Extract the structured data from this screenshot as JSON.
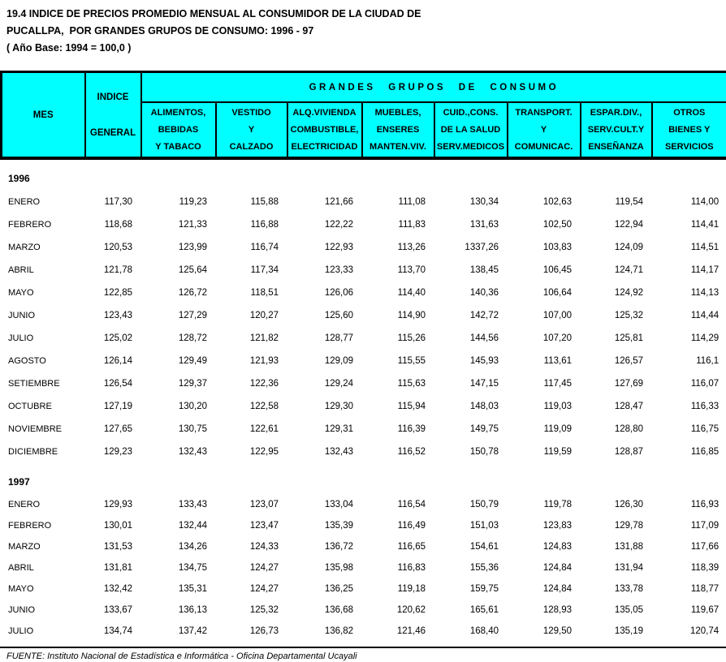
{
  "title": {
    "line1": "19.4 INDICE DE PRECIOS PROMEDIO MENSUAL AL CONSUMIDOR DE LA CIUDAD DE",
    "line2": "PUCALLPA,  POR GRANDES GRUPOS DE CONSUMO: 1996 - 97",
    "line3": "( Año Base: 1994 = 100,0 )"
  },
  "colors": {
    "header_bg": "#00FFFF",
    "border": "#000000",
    "text": "#000000",
    "page_bg": "#FFFFFF"
  },
  "table": {
    "header": {
      "mes": "MES",
      "indice": [
        "INDICE",
        "GENERAL"
      ],
      "group_title": "GRANDES GRUPOS DE CONSUMO",
      "groups": [
        [
          "ALIMENTOS,",
          "BEBIDAS",
          "Y TABACO"
        ],
        [
          "VESTIDO",
          "Y",
          "CALZADO"
        ],
        [
          "ALQ.VIVIENDA",
          "COMBUSTIBLE,",
          "ELECTRICIDAD"
        ],
        [
          "MUEBLES,",
          "ENSERES",
          "MANTEN.VIV."
        ],
        [
          "CUID.,CONS.",
          "DE LA SALUD",
          "SERV.MEDICOS"
        ],
        [
          "TRANSPORT.",
          "Y",
          "COMUNICAC."
        ],
        [
          "ESPAR.DIV.,",
          "SERV.CULT.Y",
          "ENSEÑANZA"
        ],
        [
          "OTROS",
          "BIENES Y",
          "SERVICIOS"
        ]
      ]
    },
    "sections": [
      {
        "year": "1996",
        "rows": [
          {
            "month": "ENERO",
            "values": [
              "117,30",
              "119,23",
              "115,88",
              "121,66",
              "111,08",
              "130,34",
              "102,63",
              "119,54",
              "114,00"
            ]
          },
          {
            "month": "FEBRERO",
            "values": [
              "118,68",
              "121,33",
              "116,88",
              "122,22",
              "111,83",
              "131,63",
              "102,50",
              "122,94",
              "114,41"
            ]
          },
          {
            "month": "MARZO",
            "values": [
              "120,53",
              "123,99",
              "116,74",
              "122,93",
              "113,26",
              "1337,26",
              "103,83",
              "124,09",
              "114,51"
            ]
          },
          {
            "month": "ABRIL",
            "values": [
              "121,78",
              "125,64",
              "117,34",
              "123,33",
              "113,70",
              "138,45",
              "106,45",
              "124,71",
              "114,17"
            ]
          },
          {
            "month": "MAYO",
            "values": [
              "122,85",
              "126,72",
              "118,51",
              "126,06",
              "114,40",
              "140,36",
              "106,64",
              "124,92",
              "114,13"
            ]
          },
          {
            "month": "JUNIO",
            "values": [
              "123,43",
              "127,29",
              "120,27",
              "125,60",
              "114,90",
              "142,72",
              "107,00",
              "125,32",
              "114,44"
            ]
          },
          {
            "month": "JULIO",
            "values": [
              "125,02",
              "128,72",
              "121,82",
              "128,77",
              "115,26",
              "144,56",
              "107,20",
              "125,81",
              "114,29"
            ]
          },
          {
            "month": "AGOSTO",
            "values": [
              "126,14",
              "129,49",
              "121,93",
              "129,09",
              "115,55",
              "145,93",
              "113,61",
              "126,57",
              "116,1"
            ]
          },
          {
            "month": "SETIEMBRE",
            "values": [
              "126,54",
              "129,37",
              "122,36",
              "129,24",
              "115,63",
              "147,15",
              "117,45",
              "127,69",
              "116,07"
            ]
          },
          {
            "month": "OCTUBRE",
            "values": [
              "127,19",
              "130,20",
              "122,58",
              "129,30",
              "115,94",
              "148,03",
              "119,03",
              "128,47",
              "116,33"
            ]
          },
          {
            "month": "NOVIEMBRE",
            "values": [
              "127,65",
              "130,75",
              "122,61",
              "129,31",
              "116,39",
              "149,75",
              "119,09",
              "128,80",
              "116,75"
            ]
          },
          {
            "month": "DICIEMBRE",
            "values": [
              "129,23",
              "132,43",
              "122,95",
              "132,43",
              "116,52",
              "150,78",
              "119,59",
              "128,87",
              "116,85"
            ]
          }
        ]
      },
      {
        "year": "1997",
        "rows": [
          {
            "month": "ENERO",
            "values": [
              "129,93",
              "133,43",
              "123,07",
              "133,04",
              "116,54",
              "150,79",
              "119,78",
              "126,30",
              "116,93"
            ]
          },
          {
            "month": "FEBRERO",
            "values": [
              "130,01",
              "132,44",
              "123,47",
              "135,39",
              "116,49",
              "151,03",
              "123,83",
              "129,78",
              "117,09"
            ]
          },
          {
            "month": "MARZO",
            "values": [
              "131,53",
              "134,26",
              "124,33",
              "136,72",
              "116,65",
              "154,61",
              "124,83",
              "131,88",
              "117,66"
            ]
          },
          {
            "month": "ABRIL",
            "values": [
              "131,81",
              "134,75",
              "124,27",
              "135,98",
              "116,83",
              "155,36",
              "124,84",
              "131,94",
              "118,39"
            ]
          },
          {
            "month": "MAYO",
            "values": [
              "132,42",
              "135,31",
              "124,27",
              "136,25",
              "119,18",
              "159,75",
              "124,84",
              "133,78",
              "118,77"
            ]
          },
          {
            "month": "JUNIO",
            "values": [
              "133,67",
              "136,13",
              "125,32",
              "136,68",
              "120,62",
              "165,61",
              "128,93",
              "135,05",
              "119,67"
            ]
          },
          {
            "month": "JULIO",
            "values": [
              "134,74",
              "137,42",
              "126,73",
              "136,82",
              "121,46",
              "168,40",
              "129,50",
              "135,19",
              "120,74"
            ]
          }
        ]
      }
    ]
  },
  "footer": {
    "source": "FUENTE: Instituto Nacional de Estadística e Informática - Oficina Departamental Ucayali"
  }
}
